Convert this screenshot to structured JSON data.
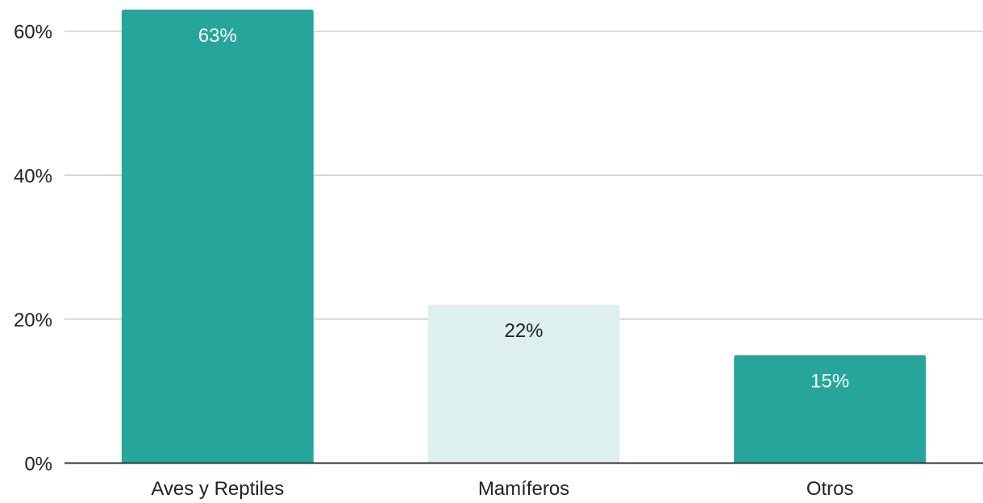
{
  "chart_data": {
    "type": "bar",
    "title": "",
    "xlabel": "",
    "ylabel": "",
    "categories": [
      "Aves y Reptiles",
      "Mamíferos",
      "Otros"
    ],
    "values": [
      63,
      22,
      15
    ],
    "data_labels": [
      "63%",
      "22%",
      "15%"
    ],
    "ylim": [
      0,
      60
    ],
    "yticks": [
      {
        "value": 0,
        "label": "0%"
      },
      {
        "value": 20,
        "label": "20%"
      },
      {
        "value": 40,
        "label": "40%"
      },
      {
        "value": 60,
        "label": "60%"
      }
    ],
    "grid": true,
    "legend": "none",
    "colors": {
      "bars": [
        "#26a69a",
        "#ddf0ee",
        "#26a69a"
      ],
      "labels": [
        "#ffffff",
        "#222222",
        "#ffffff"
      ],
      "grid": "#cccccc",
      "axis": "#333333",
      "text": "#222222"
    }
  }
}
